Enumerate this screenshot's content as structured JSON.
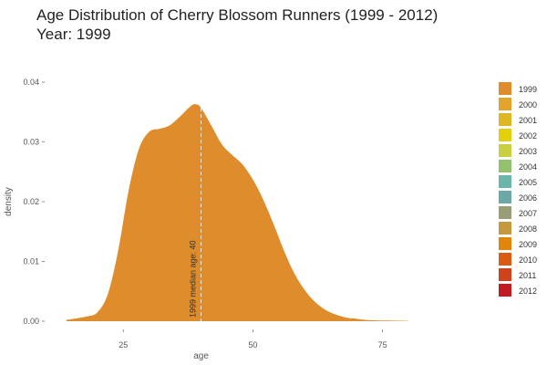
{
  "header": {
    "title": "Age Distribution of Cherry Blossom Runners (1999 - 2012)",
    "subtitle": "Year: 1999"
  },
  "chart_data": {
    "type": "area",
    "title": "Age Distribution of Cherry Blossom Runners (1999 - 2012)",
    "subtitle": "Year: 1999",
    "xlabel": "age",
    "ylabel": "density",
    "xlim": [
      10,
      80
    ],
    "ylim": [
      0,
      0.04
    ],
    "x_ticks": [
      "25",
      "50",
      "75"
    ],
    "y_ticks": [
      "0.00",
      "0.01",
      "0.02",
      "0.03",
      "0.04"
    ],
    "grid": false,
    "legend_position": "right",
    "series": [
      {
        "name": "1999",
        "color": "#de8c2c",
        "x": [
          14,
          18,
          20,
          22,
          24,
          26,
          28,
          30,
          32,
          34,
          36,
          38,
          39,
          40,
          42,
          44,
          46,
          48,
          50,
          52,
          54,
          56,
          58,
          60,
          62,
          64,
          66,
          68,
          70,
          72,
          76,
          80
        ],
        "y": [
          0.0002,
          0.0008,
          0.0015,
          0.0045,
          0.0118,
          0.0218,
          0.0288,
          0.0317,
          0.0322,
          0.0328,
          0.0343,
          0.036,
          0.0363,
          0.0357,
          0.0327,
          0.0296,
          0.0278,
          0.0262,
          0.0237,
          0.0203,
          0.0162,
          0.0118,
          0.008,
          0.0052,
          0.0032,
          0.0019,
          0.0011,
          0.0006,
          0.0004,
          0.0002,
          0.0001,
          5e-05
        ]
      }
    ],
    "annotation": {
      "x": 40,
      "label": "1999 median age: 40",
      "line_style": "dashed",
      "line_color": "#ffffff"
    },
    "legend": {
      "entries": [
        {
          "label": "1999",
          "color": "#de8c2c"
        },
        {
          "label": "2000",
          "color": "#e2a42b"
        },
        {
          "label": "2001",
          "color": "#dfb724"
        },
        {
          "label": "2002",
          "color": "#e3cf0b"
        },
        {
          "label": "2003",
          "color": "#c9cf40"
        },
        {
          "label": "2004",
          "color": "#93c26d"
        },
        {
          "label": "2005",
          "color": "#6ab6a9"
        },
        {
          "label": "2006",
          "color": "#6aa9a5"
        },
        {
          "label": "2007",
          "color": "#9b9d76"
        },
        {
          "label": "2008",
          "color": "#c6993d"
        },
        {
          "label": "2009",
          "color": "#e1860c"
        },
        {
          "label": "2010",
          "color": "#d95c12"
        },
        {
          "label": "2011",
          "color": "#d0421b"
        },
        {
          "label": "2012",
          "color": "#c21b22"
        }
      ]
    }
  }
}
